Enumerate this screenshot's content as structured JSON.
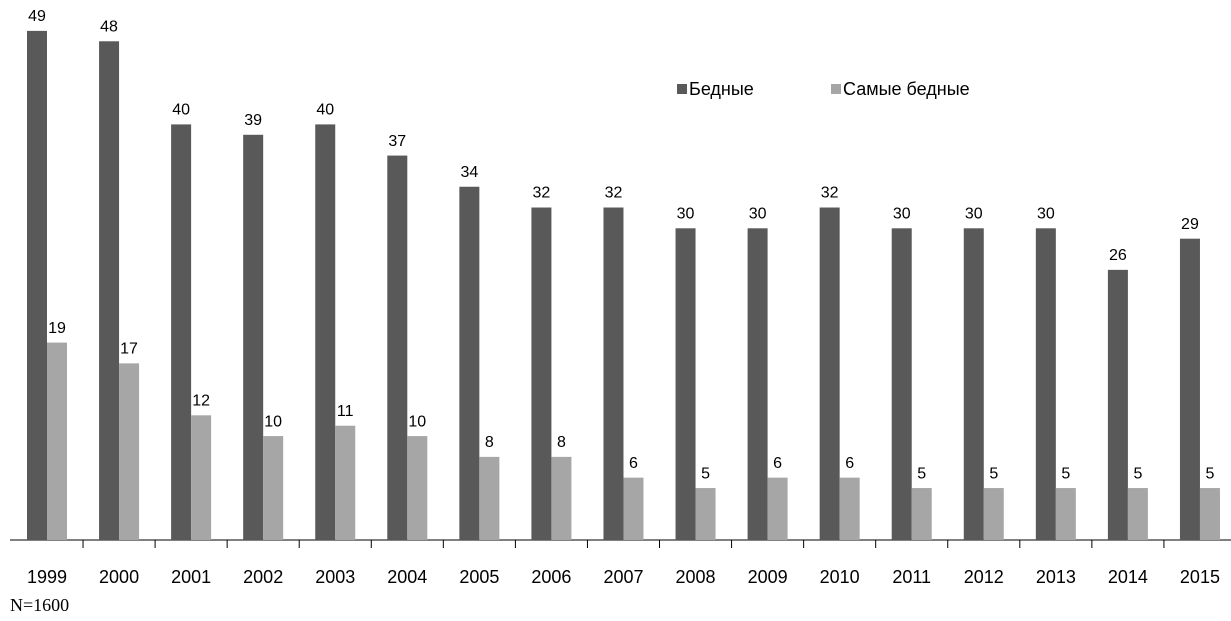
{
  "chart_data": {
    "type": "bar",
    "categories": [
      "1999",
      "2000",
      "2001",
      "2002",
      "2003",
      "2004",
      "2005",
      "2006",
      "2007",
      "2008",
      "2009",
      "2010",
      "2011",
      "2012",
      "2013",
      "2014",
      "2015"
    ],
    "series": [
      {
        "name": "Бедные",
        "color": "#595959",
        "values": [
          49,
          48,
          40,
          39,
          40,
          37,
          34,
          32,
          32,
          30,
          30,
          32,
          30,
          30,
          30,
          26,
          29
        ]
      },
      {
        "name": "Самые бедные",
        "color": "#a6a6a6",
        "values": [
          19,
          17,
          12,
          10,
          11,
          10,
          8,
          8,
          6,
          5,
          6,
          6,
          5,
          5,
          5,
          5,
          5
        ]
      }
    ],
    "ylim": [
      0,
      50
    ],
    "legend": "top-right",
    "note": "N=1600"
  }
}
